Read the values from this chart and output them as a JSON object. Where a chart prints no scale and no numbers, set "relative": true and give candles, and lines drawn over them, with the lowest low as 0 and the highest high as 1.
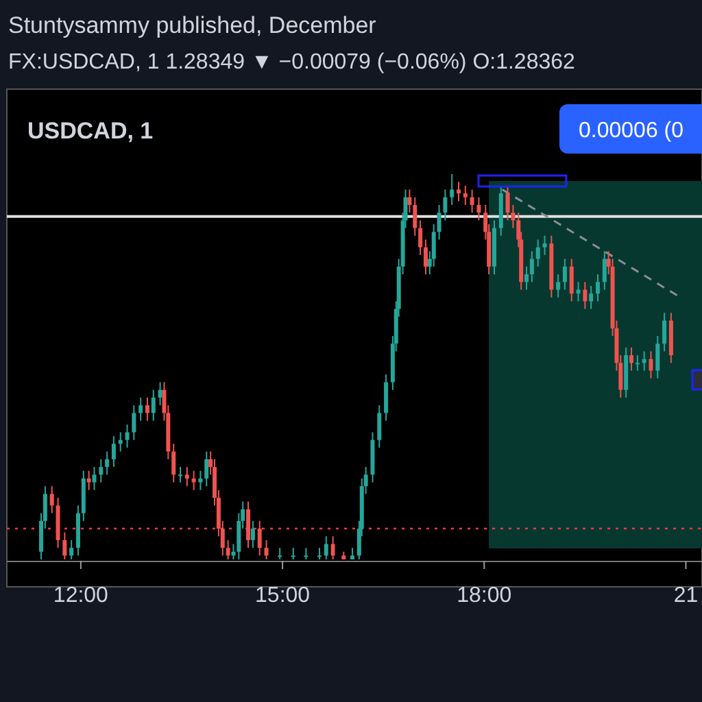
{
  "chart_data": {
    "type": "candlestick",
    "title": "Stuntysammy published, December",
    "subtitle": "FX:USDCAD, 1  1.28349 ▼ −0.00079 (−0.06%) O:1.28362",
    "relative": true,
    "annotations": [
      "USDCAD, 1",
      "0.00006 (0"
    ],
    "xlim": [
      10.9,
      21.24
    ],
    "xticks": [
      {
        "value": 12,
        "label": "12:00"
      },
      {
        "value": 15,
        "label": "15:00"
      },
      {
        "value": 18,
        "label": "18:00"
      },
      {
        "value": 21,
        "label": "21"
      }
    ],
    "x": [
      11.41,
      11.47,
      11.57,
      11.66,
      11.76,
      11.86,
      11.96,
      12.04,
      12.12,
      12.2,
      12.3,
      12.39,
      12.49,
      12.59,
      12.69,
      12.79,
      12.89,
      12.99,
      13.08,
      13.18,
      13.24,
      13.3,
      13.38,
      13.48,
      13.58,
      13.68,
      13.78,
      13.87,
      13.93,
      13.99,
      14.05,
      14.11,
      14.19,
      14.27,
      14.35,
      14.41,
      14.49,
      14.56,
      14.66,
      14.76,
      14.96,
      15.16,
      15.35,
      15.55,
      15.65,
      15.75,
      15.91,
      16.04,
      16.14,
      16.18,
      16.24,
      16.34,
      16.44,
      16.54,
      16.64,
      16.69,
      16.73,
      16.79,
      16.83,
      16.89,
      16.97,
      17.05,
      17.13,
      17.19,
      17.25,
      17.33,
      17.42,
      17.52,
      17.62,
      17.72,
      17.82,
      17.92,
      18.02,
      18.07,
      18.15,
      18.25,
      18.35,
      18.43,
      18.51,
      18.55,
      18.63,
      18.71,
      18.8,
      18.9,
      19.0,
      19.1,
      19.2,
      19.3,
      19.4,
      19.5,
      19.59,
      19.69,
      19.79,
      19.85,
      19.91,
      19.97,
      20.03,
      20.11,
      20.19,
      20.28,
      20.38,
      20.48,
      20.58,
      20.68,
      20.78
    ],
    "ohlc": [
      [
        0.02,
        0.12,
        0,
        0.1
      ],
      [
        0.1,
        0.19,
        0.08,
        0.17
      ],
      [
        0.17,
        0.19,
        0.12,
        0.14
      ],
      [
        0.14,
        0.16,
        0.03,
        0.05
      ],
      [
        0.05,
        0.07,
        0,
        0.01
      ],
      [
        0.01,
        0.05,
        0,
        0.03
      ],
      [
        0.03,
        0.14,
        0.01,
        0.12
      ],
      [
        0.12,
        0.23,
        0.1,
        0.21
      ],
      [
        0.21,
        0.23,
        0.18,
        0.2
      ],
      [
        0.2,
        0.24,
        0.18,
        0.22
      ],
      [
        0.22,
        0.26,
        0.2,
        0.24
      ],
      [
        0.24,
        0.28,
        0.22,
        0.26
      ],
      [
        0.26,
        0.32,
        0.24,
        0.3
      ],
      [
        0.3,
        0.33,
        0.28,
        0.31
      ],
      [
        0.31,
        0.35,
        0.29,
        0.33
      ],
      [
        0.33,
        0.4,
        0.31,
        0.38
      ],
      [
        0.38,
        0.42,
        0.36,
        0.4
      ],
      [
        0.4,
        0.42,
        0.36,
        0.38
      ],
      [
        0.38,
        0.44,
        0.36,
        0.42
      ],
      [
        0.42,
        0.46,
        0.4,
        0.44
      ],
      [
        0.44,
        0.46,
        0.36,
        0.38
      ],
      [
        0.38,
        0.4,
        0.26,
        0.28
      ],
      [
        0.28,
        0.3,
        0.2,
        0.22
      ],
      [
        0.22,
        0.24,
        0.2,
        0.22
      ],
      [
        0.22,
        0.24,
        0.19,
        0.21
      ],
      [
        0.21,
        0.23,
        0.18,
        0.2
      ],
      [
        0.2,
        0.23,
        0.18,
        0.21
      ],
      [
        0.21,
        0.28,
        0.19,
        0.26
      ],
      [
        0.26,
        0.28,
        0.22,
        0.24
      ],
      [
        0.24,
        0.26,
        0.14,
        0.16
      ],
      [
        0.16,
        0.18,
        0.06,
        0.08
      ],
      [
        0.08,
        0.1,
        0.01,
        0.03
      ],
      [
        0.03,
        0.05,
        0,
        0.01
      ],
      [
        0.01,
        0.04,
        0,
        0.02
      ],
      [
        0.02,
        0.12,
        0,
        0.1
      ],
      [
        0.1,
        0.15,
        0.08,
        0.13
      ],
      [
        0.13,
        0.15,
        0.03,
        0.05
      ],
      [
        0.05,
        0.1,
        0.03,
        0.08
      ],
      [
        0.08,
        0.1,
        0.01,
        0.03
      ],
      [
        0.03,
        0.05,
        0,
        0.01
      ],
      [
        0.01,
        0.03,
        0,
        0.01
      ],
      [
        0.01,
        0.03,
        0,
        0.01
      ],
      [
        0.01,
        0.03,
        0,
        0.01
      ],
      [
        0.01,
        0.03,
        0,
        0.01
      ],
      [
        0.01,
        0.06,
        0,
        0.04
      ],
      [
        0.04,
        0.06,
        0,
        0.01
      ],
      [
        0.01,
        0.02,
        0,
        0
      ],
      [
        0,
        0.03,
        0,
        0.01
      ],
      [
        0.01,
        0.1,
        0,
        0.08
      ],
      [
        0.08,
        0.21,
        0.06,
        0.19
      ],
      [
        0.19,
        0.24,
        0.17,
        0.22
      ],
      [
        0.22,
        0.33,
        0.2,
        0.31
      ],
      [
        0.31,
        0.4,
        0.29,
        0.38
      ],
      [
        0.38,
        0.48,
        0.36,
        0.46
      ],
      [
        0.46,
        0.58,
        0.44,
        0.56
      ],
      [
        0.56,
        0.67,
        0.54,
        0.65
      ],
      [
        0.65,
        0.78,
        0.63,
        0.76
      ],
      [
        0.76,
        0.9,
        0.74,
        0.88
      ],
      [
        0.88,
        0.96,
        0.86,
        0.94
      ],
      [
        0.94,
        0.96,
        0.9,
        0.92
      ],
      [
        0.92,
        0.94,
        0.84,
        0.86
      ],
      [
        0.86,
        0.88,
        0.79,
        0.81
      ],
      [
        0.81,
        0.83,
        0.74,
        0.76
      ],
      [
        0.76,
        0.8,
        0.74,
        0.78
      ],
      [
        0.78,
        0.87,
        0.76,
        0.85
      ],
      [
        0.85,
        0.92,
        0.83,
        0.9
      ],
      [
        0.9,
        0.96,
        0.88,
        0.94
      ],
      [
        0.94,
        1,
        0.92,
        0.96
      ],
      [
        0.96,
        0.98,
        0.93,
        0.95
      ],
      [
        0.95,
        0.97,
        0.92,
        0.94
      ],
      [
        0.94,
        0.96,
        0.9,
        0.92
      ],
      [
        0.92,
        0.94,
        0.88,
        0.9
      ],
      [
        0.9,
        0.92,
        0.83,
        0.85
      ],
      [
        0.85,
        0.87,
        0.74,
        0.76
      ],
      [
        0.76,
        0.88,
        0.74,
        0.86
      ],
      [
        0.86,
        0.97,
        0.84,
        0.95
      ],
      [
        0.95,
        0.97,
        0.88,
        0.9
      ],
      [
        0.9,
        0.92,
        0.86,
        0.88
      ],
      [
        0.88,
        0.9,
        0.81,
        0.83
      ],
      [
        0.83,
        0.85,
        0.7,
        0.72
      ],
      [
        0.72,
        0.76,
        0.7,
        0.74
      ],
      [
        0.74,
        0.8,
        0.72,
        0.78
      ],
      [
        0.78,
        0.83,
        0.76,
        0.81
      ],
      [
        0.81,
        0.84,
        0.79,
        0.82
      ],
      [
        0.82,
        0.84,
        0.68,
        0.7
      ],
      [
        0.7,
        0.74,
        0.68,
        0.72
      ],
      [
        0.72,
        0.78,
        0.7,
        0.76
      ],
      [
        0.76,
        0.78,
        0.67,
        0.69
      ],
      [
        0.69,
        0.72,
        0.67,
        0.7
      ],
      [
        0.7,
        0.72,
        0.65,
        0.67
      ],
      [
        0.67,
        0.71,
        0.65,
        0.69
      ],
      [
        0.69,
        0.74,
        0.67,
        0.72
      ],
      [
        0.72,
        0.8,
        0.7,
        0.78
      ],
      [
        0.78,
        0.8,
        0.74,
        0.76
      ],
      [
        0.76,
        0.78,
        0.58,
        0.6
      ],
      [
        0.6,
        0.62,
        0.49,
        0.51
      ],
      [
        0.51,
        0.53,
        0.42,
        0.44
      ],
      [
        0.44,
        0.55,
        0.42,
        0.53
      ],
      [
        0.53,
        0.55,
        0.49,
        0.51
      ],
      [
        0.51,
        0.53,
        0.49,
        0.51
      ],
      [
        0.51,
        0.54,
        0.49,
        0.52
      ],
      [
        0.52,
        0.54,
        0.47,
        0.49
      ],
      [
        0.49,
        0.58,
        0.47,
        0.56
      ],
      [
        0.56,
        0.64,
        0.54,
        0.62
      ],
      [
        0.62,
        0.64,
        0.51,
        0.53
      ]
    ],
    "series": [
      {
        "type": "line",
        "x": [
          18.27,
          20.92
        ],
        "values": [
          0.96,
          0.68
        ],
        "color": "#8a8d96",
        "line_style": "dashed",
        "marker": "none"
      }
    ],
    "ref_lines": [
      {
        "axis": "y",
        "value": 0.89,
        "color": "#e0e0e0",
        "line_style": "solid"
      },
      {
        "axis": "y",
        "value": 0.08,
        "color": "#f23645",
        "line_style": "dotted"
      }
    ],
    "bands": [
      {
        "axis": "x",
        "from": 18.07,
        "to": 21.24,
        "color": "#07382f"
      }
    ]
  }
}
